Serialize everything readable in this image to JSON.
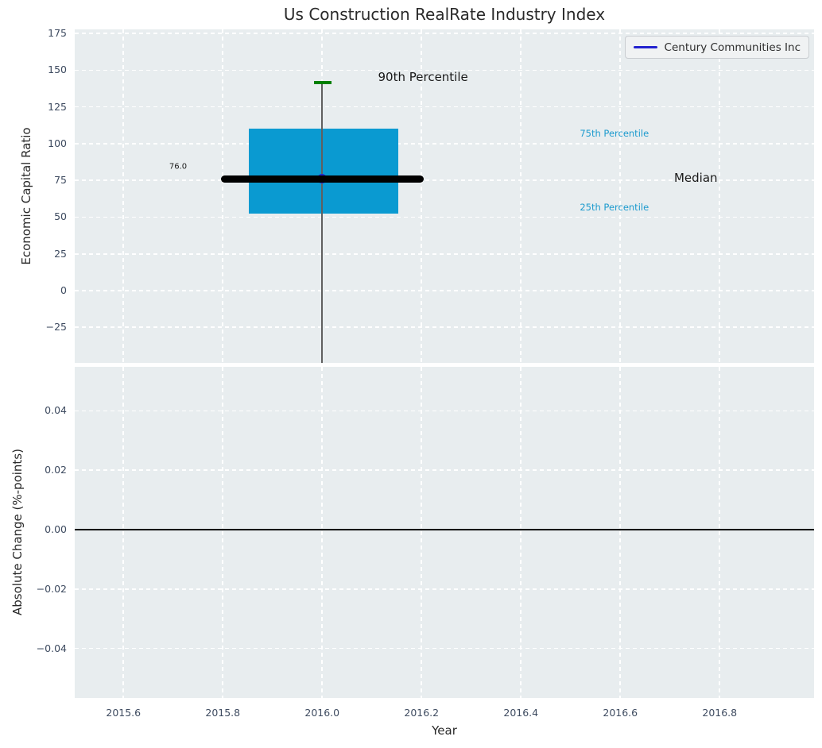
{
  "title": "Us Construction RealRate Industry Index",
  "legend": {
    "label": "Century Communities Inc"
  },
  "colors": {
    "plot_background": "#e8edef",
    "grid": "#ffffff",
    "box_fill": "#0a9ad1",
    "median_line": "#000000",
    "whisker": "#606060",
    "cap_green": "#008000",
    "point_blue": "#2222cf",
    "legend_line": "#2222cf",
    "percentile_text": "#1d9bce",
    "zero_line": "#000000",
    "tick_label": "#3e4b60",
    "text": "#2a2a2a"
  },
  "chart_data": [
    {
      "type": "boxplot",
      "title": "Us Construction RealRate Industry Index",
      "ylabel": "Economic Capital Ratio",
      "xlim": [
        2015.502,
        2016.99
      ],
      "ylim": [
        -49.2,
        177.8
      ],
      "grid": true,
      "legend_position": "upper right",
      "xticks": [
        2015.6,
        2015.8,
        2016.0,
        2016.2,
        2016.4,
        2016.6,
        2016.8
      ],
      "yticks": [
        {
          "v": 175,
          "label": "175"
        },
        {
          "v": 150,
          "label": "150"
        },
        {
          "v": 125,
          "label": "125"
        },
        {
          "v": 100,
          "label": "100"
        },
        {
          "v": 75,
          "label": "75"
        },
        {
          "v": 50,
          "label": "50"
        },
        {
          "v": 25,
          "label": "25"
        },
        {
          "v": 0,
          "label": "0"
        },
        {
          "v": -25,
          "label": "−25"
        }
      ],
      "box": {
        "center_x": 2016.0,
        "box_left": 2015.852,
        "box_right": 2016.153,
        "q1": 52.5,
        "median": 76.0,
        "q3": 110.5,
        "p90": 141.5,
        "cap_left": 2015.983,
        "cap_right": 2016.018,
        "median_left": 2015.796,
        "median_right": 2016.204,
        "whisker_low_clipped": true
      },
      "series": [
        {
          "name": "Century Communities Inc",
          "x": [
            2016.0
          ],
          "y": [
            76.0
          ]
        }
      ],
      "annotations": [
        {
          "text": "76.0",
          "x": 2015.71,
          "y": 84.5,
          "role": "value"
        },
        {
          "text": "90th Percentile",
          "x": 2016.203,
          "y": 145.4,
          "role": "callout"
        },
        {
          "text": "75th Percentile",
          "x": 2016.588,
          "y": 107.2,
          "role": "percentile"
        },
        {
          "text": "Median",
          "x": 2016.752,
          "y": 77.0,
          "role": "callout"
        },
        {
          "text": "25th Percentile",
          "x": 2016.588,
          "y": 56.5,
          "role": "percentile"
        }
      ]
    },
    {
      "type": "line",
      "ylabel": "Absolute Change (%-points)",
      "xlabel": "Year",
      "xlim": [
        2015.502,
        2016.99
      ],
      "ylim": [
        -0.0567,
        0.0548
      ],
      "grid": true,
      "zero_line": 0.0,
      "xticks": [
        {
          "v": 2015.6,
          "label": "2015.6"
        },
        {
          "v": 2015.8,
          "label": "2015.8"
        },
        {
          "v": 2016.0,
          "label": "2016.0"
        },
        {
          "v": 2016.2,
          "label": "2016.2"
        },
        {
          "v": 2016.4,
          "label": "2016.4"
        },
        {
          "v": 2016.6,
          "label": "2016.6"
        },
        {
          "v": 2016.8,
          "label": "2016.8"
        }
      ],
      "yticks": [
        {
          "v": 0.04,
          "label": "0.04"
        },
        {
          "v": 0.02,
          "label": "0.02"
        },
        {
          "v": 0,
          "label": "0.00"
        },
        {
          "v": -0.02,
          "label": "−0.02"
        },
        {
          "v": -0.04,
          "label": "−0.04"
        }
      ],
      "series": []
    }
  ]
}
